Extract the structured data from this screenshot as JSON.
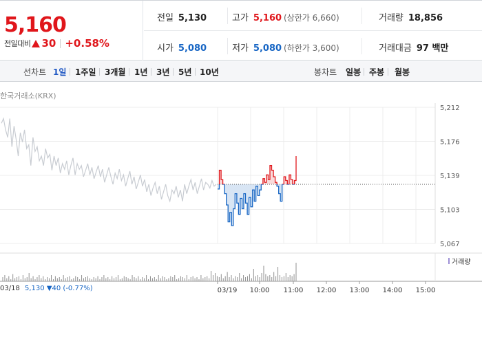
{
  "header": {
    "price": "5,160",
    "change_label": "전일대비",
    "change_value": "30",
    "change_pct": "+0.58%",
    "stats": {
      "prev_label": "전일",
      "prev_value": "5,130",
      "high_label": "고가",
      "high_value": "5,160",
      "upper_limit": "(상한가 6,660)",
      "volume_label": "거래량",
      "volume_value": "18,856",
      "open_label": "시가",
      "open_value": "5,080",
      "low_label": "저가",
      "low_value": "5,080",
      "lower_limit": "(하한가 3,600)",
      "amount_label": "거래대금",
      "amount_value": "97 백만"
    }
  },
  "period_bar": {
    "line_title": "선차트",
    "line_items": [
      "1일",
      "1주일",
      "3개월",
      "1년",
      "3년",
      "5년",
      "10년"
    ],
    "active_index": 0,
    "candle_title": "봉차트",
    "candle_items": [
      "일봉",
      "주봉",
      "월봉"
    ]
  },
  "exchange": "한국거래소(KRX)",
  "colors": {
    "up": "#e0161b",
    "down": "#1665c4",
    "prev_day_line": "#c8ccd2",
    "volume": "#8f8f8f"
  },
  "bottom": {
    "prev_date": "03/18",
    "prev_close": "5,130 ▼40 (-0.77%)",
    "volume_legend": "거래량"
  },
  "chart_data": {
    "type": "line",
    "y_ticks": [
      "5,212",
      "5,176",
      "5,139",
      "5,103",
      "5,067"
    ],
    "ylim": [
      5067,
      5212
    ],
    "reference_price": 5130,
    "x_ticks": [
      "03/18",
      "03/19",
      "10:00",
      "11:00",
      "12:00",
      "13:00",
      "14:00",
      "15:00"
    ],
    "series": [
      {
        "values": [
          5195,
          5200,
          5188,
          5180,
          5200,
          5170,
          5192,
          5178,
          5160,
          5185,
          5175,
          5188,
          5168,
          5172,
          5150,
          5180,
          5165,
          5170,
          5155,
          5160,
          5150,
          5168,
          5158,
          5162,
          5145,
          5160,
          5150,
          5158,
          5142,
          5152,
          5146,
          5155,
          5140,
          5150,
          5158,
          5140,
          5152,
          5146,
          5150,
          5138,
          5145,
          5152,
          5140,
          5148,
          5136,
          5143,
          5150,
          5138,
          5146,
          5132,
          5140,
          5148,
          5138,
          5130,
          5142,
          5136,
          5146,
          5134,
          5140,
          5128,
          5136,
          5144,
          5130,
          5138,
          5125,
          5132,
          5140,
          5128,
          5135,
          5122,
          5130,
          5118,
          5126,
          5132,
          5120,
          5128,
          5114,
          5122,
          5130,
          5118,
          5112,
          5124,
          5120,
          5128,
          5116,
          5124,
          5112,
          5130,
          5120,
          5128,
          5135,
          5124,
          5132,
          5120,
          5128,
          5136,
          5124,
          5132,
          5130,
          5126,
          5134,
          5128,
          5130
        ]
      },
      {
        "values": [
          5125,
          5145,
          5135,
          5130,
          5120,
          5108,
          5090,
          5100,
          5086,
          5104,
          5120,
          5110,
          5098,
          5115,
          5104,
          5120,
          5110,
          5098,
          5116,
          5106,
          5124,
          5112,
          5128,
          5118,
          5124,
          5130,
          5136,
          5132,
          5140,
          5135,
          5150,
          5145,
          5138,
          5132,
          5128,
          5120,
          5112,
          5130,
          5138,
          5134,
          5130,
          5140,
          5135,
          5130,
          5134,
          5160
        ]
      }
    ],
    "volume": [
      4,
      6,
      3,
      5,
      2,
      7,
      3,
      4,
      5,
      2,
      6,
      3,
      4,
      8,
      3,
      5,
      2,
      4,
      6,
      3,
      5,
      2,
      4,
      3,
      6,
      2,
      5,
      3,
      4,
      2,
      6,
      3,
      4,
      5,
      2,
      3,
      5,
      4,
      2,
      6,
      3,
      4,
      5,
      3,
      2,
      4,
      3,
      5,
      2,
      4,
      6,
      3,
      4,
      2,
      5,
      3,
      4,
      6,
      2,
      3,
      5,
      4,
      3,
      2,
      6,
      4,
      3,
      5,
      2,
      4,
      3,
      6,
      2,
      5,
      3,
      4,
      2,
      6,
      3,
      5,
      4,
      2,
      3,
      5,
      4,
      6,
      2,
      3,
      5,
      4,
      3,
      6,
      2,
      4,
      5,
      3,
      4,
      2,
      6,
      3,
      4,
      5,
      3,
      10,
      6,
      8,
      5,
      4,
      7,
      3,
      5,
      9,
      4,
      6,
      3,
      5,
      4,
      8,
      3,
      6,
      4,
      5,
      7,
      3,
      12,
      5,
      6,
      4,
      8,
      15,
      7,
      5,
      6,
      4,
      9,
      5,
      14,
      6,
      4,
      5,
      8,
      4,
      6,
      5,
      7,
      18
    ]
  }
}
